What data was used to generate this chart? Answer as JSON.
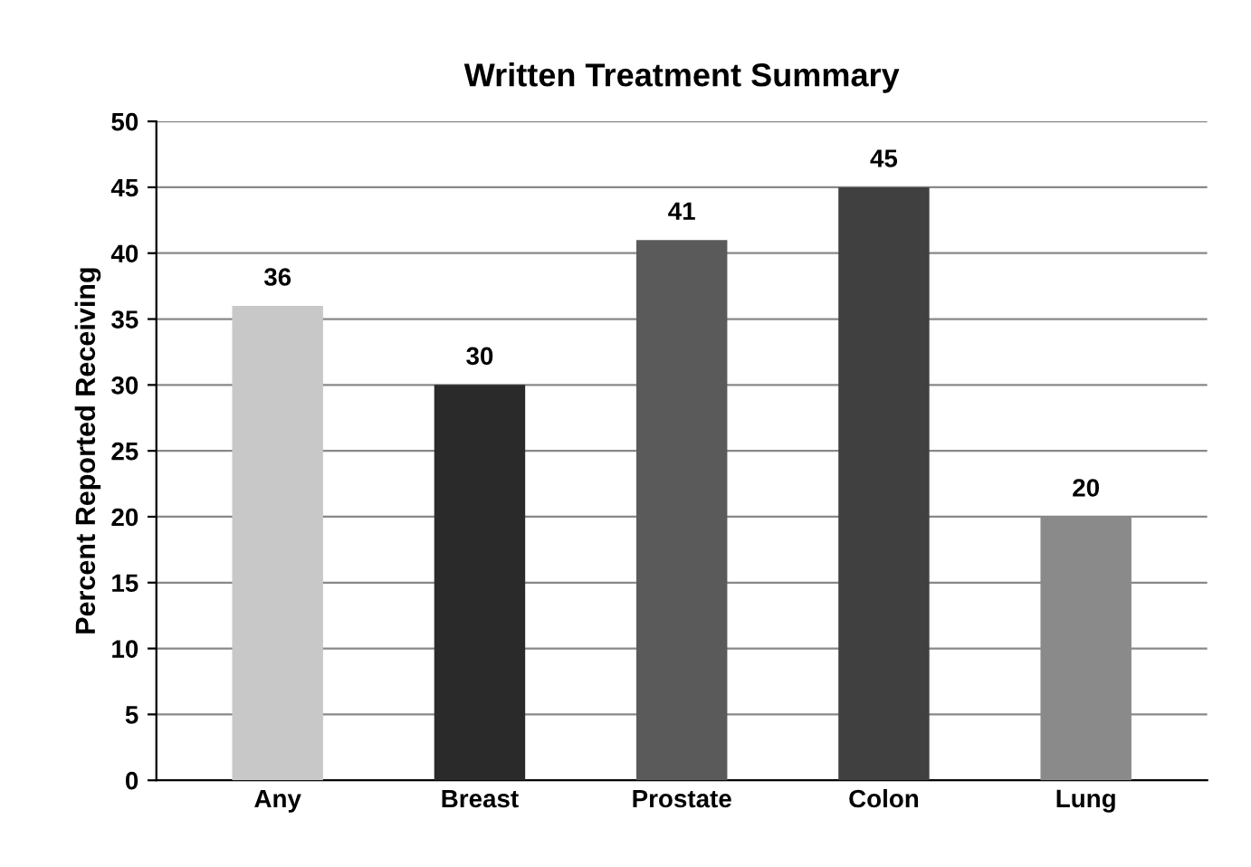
{
  "chart_data": {
    "type": "bar",
    "title": "Written Treatment Summary",
    "ylabel": "Percent Reported Receiving",
    "categories": [
      "Any",
      "Breast",
      "Prostate",
      "Colon",
      "Lung"
    ],
    "values": [
      36,
      30,
      41,
      45,
      20
    ],
    "colors": [
      "#c8c8c8",
      "#2a2a2a",
      "#5a5a5a",
      "#404040",
      "#8a8a8a"
    ],
    "ylim": [
      0,
      50
    ],
    "yticks": [
      0,
      5,
      10,
      15,
      20,
      25,
      30,
      35,
      40,
      45,
      50
    ],
    "grid": "y",
    "data_labels": true
  }
}
